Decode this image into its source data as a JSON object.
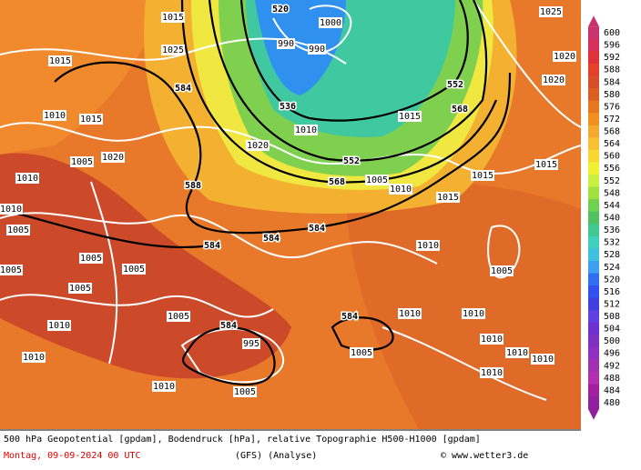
{
  "map": {
    "geopotential_labels": [
      "520",
      "536",
      "552",
      "568",
      "584",
      "588",
      "584",
      "584",
      "584",
      "584",
      "584",
      "552",
      "568"
    ],
    "pressure_labels": [
      "1015",
      "1025",
      "990",
      "990",
      "1000",
      "1020",
      "1010",
      "1005",
      "1010",
      "1015",
      "1020",
      "1025",
      "1020",
      "1015",
      "1015",
      "1015",
      "1005",
      "1010",
      "1010",
      "1005",
      "1010",
      "1010",
      "1010",
      "1010",
      "1010",
      "1005",
      "1010",
      "1010",
      "1010",
      "1005",
      "1005",
      "1005",
      "1005",
      "995",
      "1005",
      "1010",
      "1010",
      "1015",
      "1010",
      "1015",
      "1020",
      "1005",
      "1005"
    ]
  },
  "colorbar": {
    "labels": [
      600,
      596,
      592,
      588,
      584,
      580,
      576,
      572,
      568,
      564,
      560,
      556,
      552,
      548,
      544,
      540,
      536,
      532,
      528,
      524,
      520,
      516,
      512,
      508,
      504,
      500,
      496,
      492,
      488,
      484,
      480
    ],
    "colors": [
      "#c8336e",
      "#d6305a",
      "#e0303a",
      "#e4402c",
      "#d4502a",
      "#dc5e22",
      "#e87820",
      "#f09020",
      "#f4a830",
      "#f8c030",
      "#f8d830",
      "#f0f030",
      "#c8f040",
      "#a0e040",
      "#70d050",
      "#50c060",
      "#40c890",
      "#40d0c0",
      "#40c0e0",
      "#40a0f0",
      "#3070f0",
      "#3050f0",
      "#4040e0",
      "#6040e0",
      "#7030d0",
      "#8030c0",
      "#9030c0",
      "#a030b0",
      "#b030b0",
      "#a020a0",
      "#9020a0"
    ]
  },
  "footer": {
    "line1": "500 hPa Geopotential [gpdam], Bodendruck [hPa], relative Topographie H500-H1000 [gpdam]",
    "date": "Montag, 09-09-2024  00 UTC",
    "model": "(GFS)  (Analyse)",
    "credit": "© www.wetter3.de"
  }
}
